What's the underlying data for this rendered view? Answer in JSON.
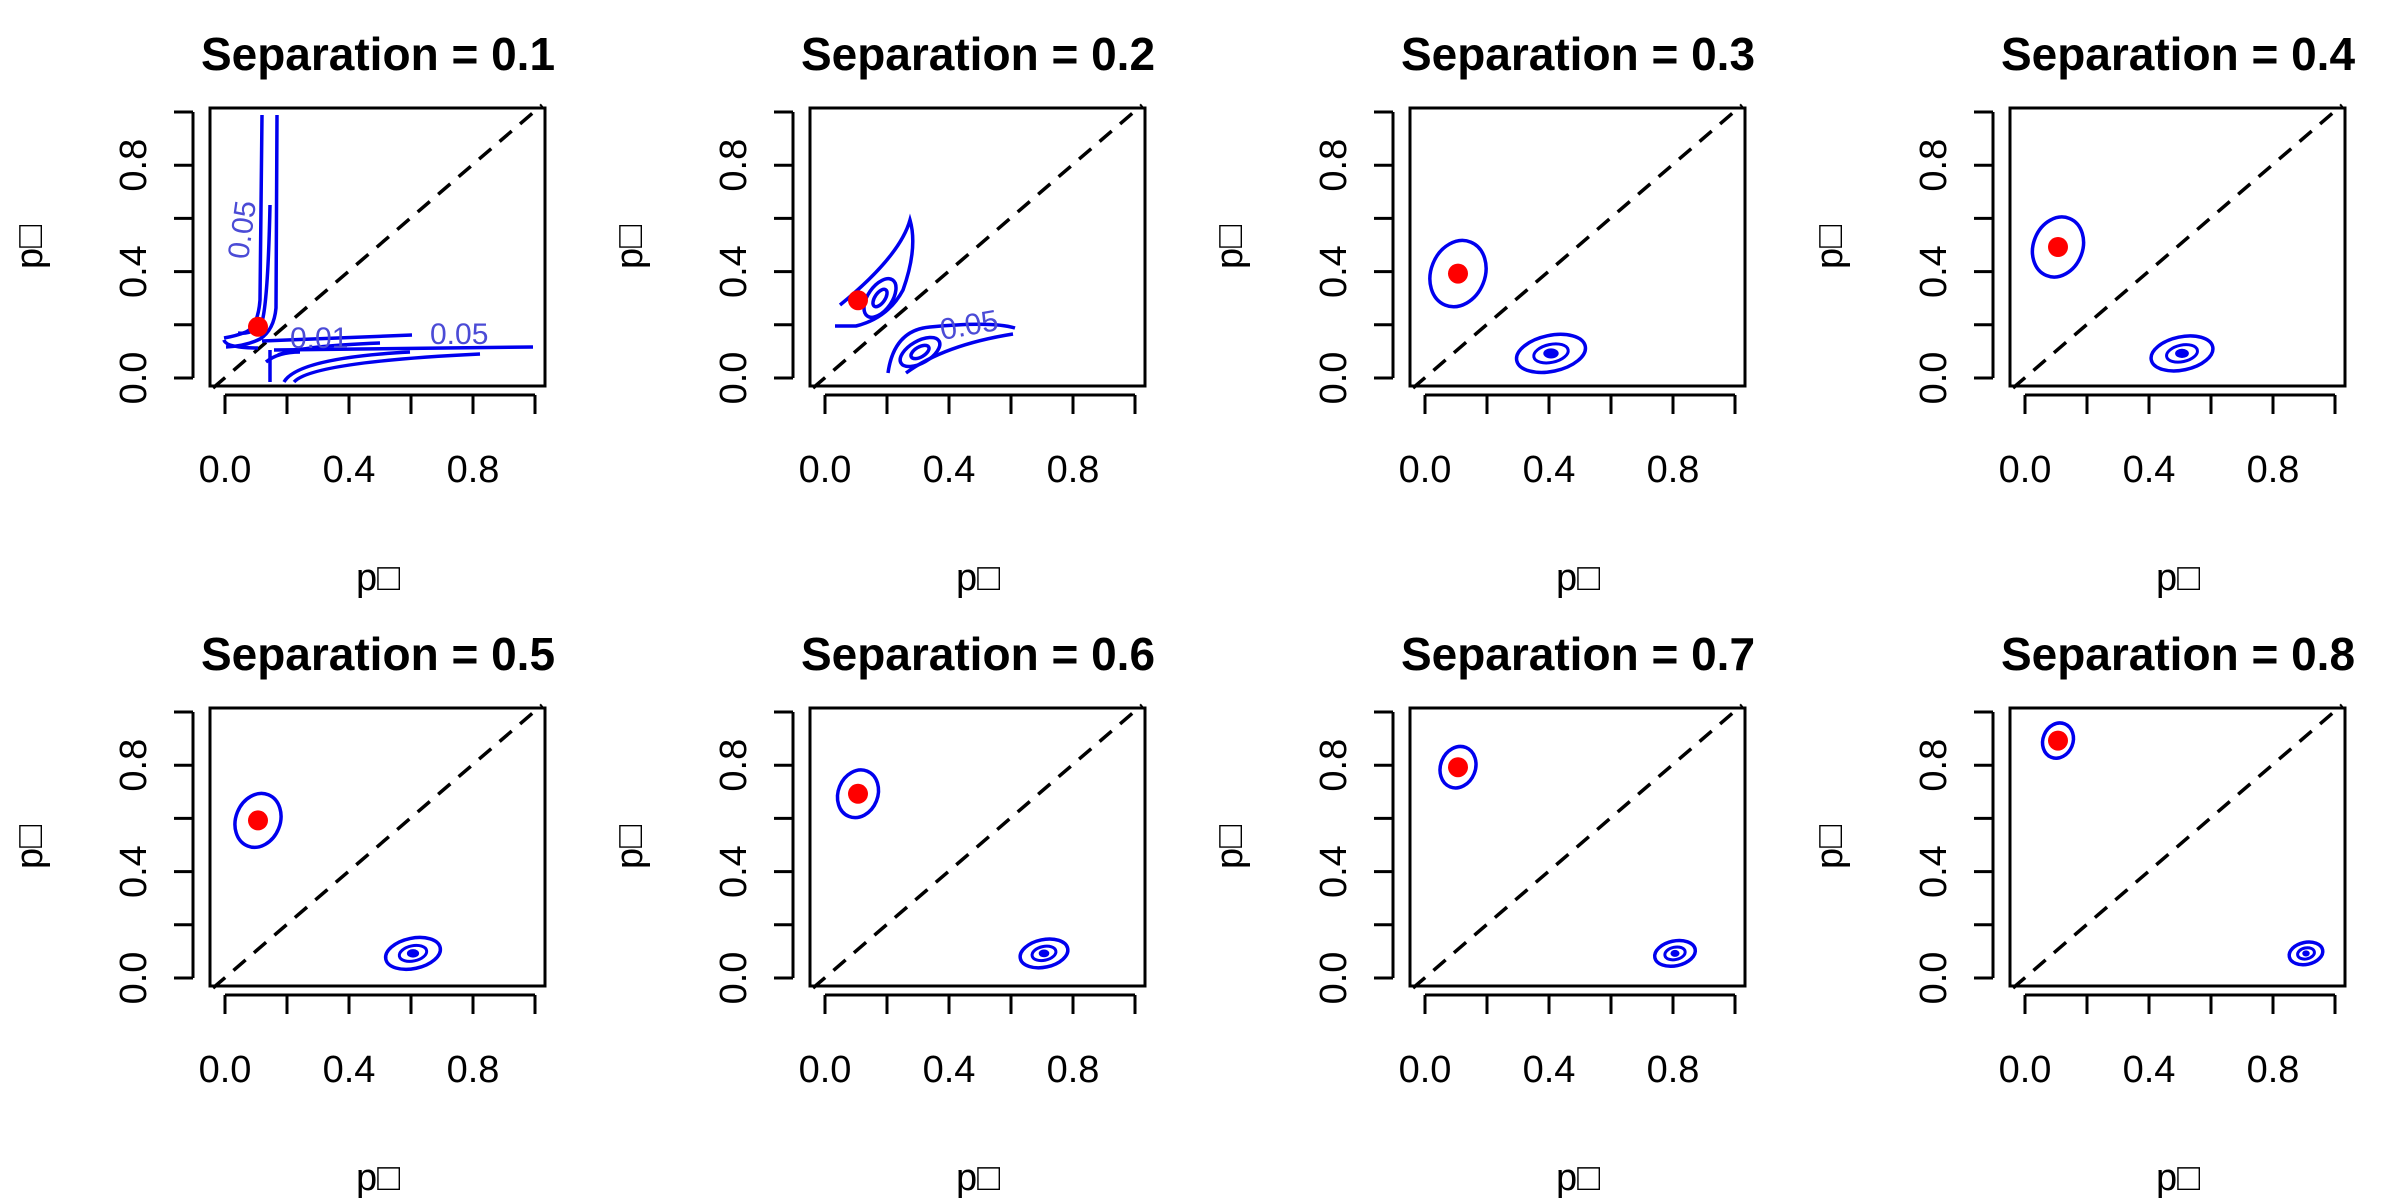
{
  "chart_data": [
    {
      "type": "contour",
      "title": "Separation =  0.1",
      "xlabel": "p□",
      "ylabel": "p□",
      "xlim": [
        0,
        1
      ],
      "ylim": [
        0,
        1
      ],
      "x_ticks": [
        "0.0",
        "0.4",
        "0.8"
      ],
      "y_ticks": [
        "0.0",
        "0.4",
        "0.8"
      ],
      "reference_line": "y = x (dashed)",
      "mode_upper": {
        "x": 0.1,
        "y": 0.2
      },
      "mode_lower": {
        "x": 0.2,
        "y": 0.1
      },
      "contour_labels": [
        "0.05",
        "0.01",
        "0.05"
      ],
      "colors": {
        "contour": "#0000ee",
        "mode": "#ff0000",
        "reference": "#000000"
      }
    },
    {
      "type": "contour",
      "title": "Separation =  0.2",
      "xlabel": "p□",
      "ylabel": "p□",
      "xlim": [
        0,
        1
      ],
      "ylim": [
        0,
        1
      ],
      "x_ticks": [
        "0.0",
        "0.4",
        "0.8"
      ],
      "y_ticks": [
        "0.0",
        "0.4",
        "0.8"
      ],
      "reference_line": "y = x (dashed)",
      "mode_upper": {
        "x": 0.1,
        "y": 0.3
      },
      "mode_lower": {
        "x": 0.3,
        "y": 0.1
      },
      "contour_labels": [
        "0.05"
      ],
      "colors": {
        "contour": "#0000ee",
        "mode": "#ff0000",
        "reference": "#000000"
      }
    },
    {
      "type": "contour",
      "title": "Separation =  0.3",
      "xlabel": "p□",
      "ylabel": "p□",
      "xlim": [
        0,
        1
      ],
      "ylim": [
        0,
        1
      ],
      "x_ticks": [
        "0.0",
        "0.4",
        "0.8"
      ],
      "y_ticks": [
        "0.0",
        "0.4",
        "0.8"
      ],
      "reference_line": "y = x (dashed)",
      "mode_upper": {
        "x": 0.1,
        "y": 0.4
      },
      "mode_lower": {
        "x": 0.4,
        "y": 0.1
      },
      "contour_labels": [],
      "colors": {
        "contour": "#0000ee",
        "mode": "#ff0000",
        "reference": "#000000"
      }
    },
    {
      "type": "contour",
      "title": "Separation =  0.4",
      "xlabel": "p□",
      "ylabel": "p□",
      "xlim": [
        0,
        1
      ],
      "ylim": [
        0,
        1
      ],
      "x_ticks": [
        "0.0",
        "0.4",
        "0.8"
      ],
      "y_ticks": [
        "0.0",
        "0.4",
        "0.8"
      ],
      "reference_line": "y = x (dashed)",
      "mode_upper": {
        "x": 0.1,
        "y": 0.5
      },
      "mode_lower": {
        "x": 0.5,
        "y": 0.1
      },
      "contour_labels": [],
      "colors": {
        "contour": "#0000ee",
        "mode": "#ff0000",
        "reference": "#000000"
      }
    },
    {
      "type": "contour",
      "title": "Separation =  0.5",
      "xlabel": "p□",
      "ylabel": "p□",
      "xlim": [
        0,
        1
      ],
      "ylim": [
        0,
        1
      ],
      "x_ticks": [
        "0.0",
        "0.4",
        "0.8"
      ],
      "y_ticks": [
        "0.0",
        "0.4",
        "0.8"
      ],
      "reference_line": "y = x (dashed)",
      "mode_upper": {
        "x": 0.1,
        "y": 0.6
      },
      "mode_lower": {
        "x": 0.6,
        "y": 0.1
      },
      "contour_labels": [],
      "colors": {
        "contour": "#0000ee",
        "mode": "#ff0000",
        "reference": "#000000"
      }
    },
    {
      "type": "contour",
      "title": "Separation =  0.6",
      "xlabel": "p□",
      "ylabel": "p□",
      "xlim": [
        0,
        1
      ],
      "ylim": [
        0,
        1
      ],
      "x_ticks": [
        "0.0",
        "0.4",
        "0.8"
      ],
      "y_ticks": [
        "0.0",
        "0.4",
        "0.8"
      ],
      "reference_line": "y = x (dashed)",
      "mode_upper": {
        "x": 0.1,
        "y": 0.7
      },
      "mode_lower": {
        "x": 0.7,
        "y": 0.1
      },
      "contour_labels": [],
      "colors": {
        "contour": "#0000ee",
        "mode": "#ff0000",
        "reference": "#000000"
      }
    },
    {
      "type": "contour",
      "title": "Separation =  0.7",
      "xlabel": "p□",
      "ylabel": "p□",
      "xlim": [
        0,
        1
      ],
      "ylim": [
        0,
        1
      ],
      "x_ticks": [
        "0.0",
        "0.4",
        "0.8"
      ],
      "y_ticks": [
        "0.0",
        "0.4",
        "0.8"
      ],
      "reference_line": "y = x (dashed)",
      "mode_upper": {
        "x": 0.1,
        "y": 0.8
      },
      "mode_lower": {
        "x": 0.8,
        "y": 0.1
      },
      "contour_labels": [],
      "colors": {
        "contour": "#0000ee",
        "mode": "#ff0000",
        "reference": "#000000"
      }
    },
    {
      "type": "contour",
      "title": "Separation =  0.8",
      "xlabel": "p□",
      "ylabel": "p□",
      "xlim": [
        0,
        1
      ],
      "ylim": [
        0,
        1
      ],
      "x_ticks": [
        "0.0",
        "0.4",
        "0.8"
      ],
      "y_ticks": [
        "0.0",
        "0.4",
        "0.8"
      ],
      "reference_line": "y = x (dashed)",
      "mode_upper": {
        "x": 0.1,
        "y": 0.9
      },
      "mode_lower": {
        "x": 0.9,
        "y": 0.1
      },
      "contour_labels": [],
      "colors": {
        "contour": "#0000ee",
        "mode": "#ff0000",
        "reference": "#000000"
      }
    }
  ]
}
